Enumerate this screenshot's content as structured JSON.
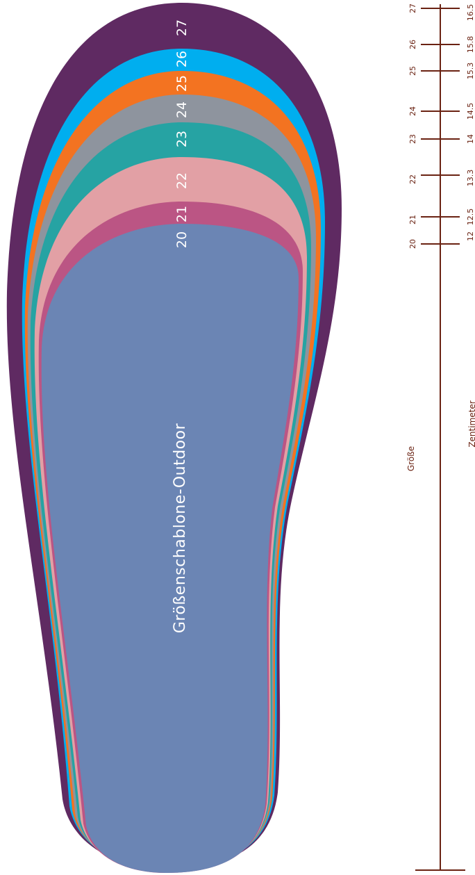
{
  "template": {
    "title": "Größenschablone-Outdoor",
    "colors": {
      "s27": "#5f2a62",
      "s26": "#00aeef",
      "s25": "#f37321",
      "s24": "#8e949e",
      "s23": "#26a3a3",
      "s22": "#e2a0a5",
      "s21": "#bb5584",
      "s20": "#6b85b4",
      "ruler": "#6a2212"
    },
    "sizes": [
      {
        "label": "27",
        "color": "#5f2a62"
      },
      {
        "label": "26",
        "color": "#00aeef"
      },
      {
        "label": "25",
        "color": "#f37321"
      },
      {
        "label": "24",
        "color": "#8e949e"
      },
      {
        "label": "23",
        "color": "#26a3a3"
      },
      {
        "label": "22",
        "color": "#e2a0a5"
      },
      {
        "label": "21",
        "color": "#bb5584"
      },
      {
        "label": "20",
        "color": "#6b85b4"
      }
    ]
  },
  "ruler": {
    "size_caption": "Größe",
    "cm_caption": "Zentimeter",
    "marks": [
      {
        "size": "27",
        "cm": "16.5"
      },
      {
        "size": "26",
        "cm": "15.8"
      },
      {
        "size": "25",
        "cm": "15.3"
      },
      {
        "size": "24",
        "cm": "14.5"
      },
      {
        "size": "23",
        "cm": "14"
      },
      {
        "size": "22",
        "cm": "13.3"
      },
      {
        "size": "21",
        "cm": "12.5"
      },
      {
        "size": "20",
        "cm": "12"
      }
    ]
  }
}
